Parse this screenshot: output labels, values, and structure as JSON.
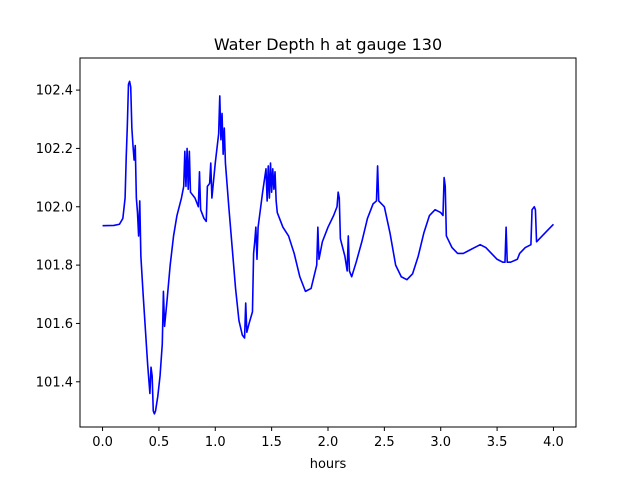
{
  "chart_data": {
    "type": "line",
    "title": "Water Depth h at gauge 130",
    "xlabel": "hours",
    "ylabel": "",
    "xlim": [
      -0.2,
      4.2
    ],
    "ylim": [
      101.245,
      102.51
    ],
    "x_ticks": [
      0.0,
      0.5,
      1.0,
      1.5,
      2.0,
      2.5,
      3.0,
      3.5,
      4.0
    ],
    "x_tick_labels": [
      "0.0",
      "0.5",
      "1.0",
      "1.5",
      "2.0",
      "2.5",
      "3.0",
      "3.5",
      "4.0"
    ],
    "y_ticks": [
      101.4,
      101.6,
      101.8,
      102.0,
      102.2,
      102.4
    ],
    "y_tick_labels": [
      "101.4",
      "101.6",
      "101.8",
      "102.0",
      "102.2",
      "102.4"
    ],
    "grid": false,
    "line_color": "#0000ff",
    "series": [
      {
        "points": [
          [
            0.0,
            101.935
          ],
          [
            0.1,
            101.936
          ],
          [
            0.15,
            101.94
          ],
          [
            0.18,
            101.96
          ],
          [
            0.2,
            102.03
          ],
          [
            0.21,
            102.17
          ],
          [
            0.22,
            102.28
          ],
          [
            0.23,
            102.42
          ],
          [
            0.24,
            102.43
          ],
          [
            0.25,
            102.41
          ],
          [
            0.26,
            102.27
          ],
          [
            0.27,
            102.21
          ],
          [
            0.28,
            102.16
          ],
          [
            0.29,
            102.21
          ],
          [
            0.3,
            102.03
          ],
          [
            0.31,
            101.98
          ],
          [
            0.32,
            101.9
          ],
          [
            0.33,
            102.02
          ],
          [
            0.34,
            101.83
          ],
          [
            0.36,
            101.7
          ],
          [
            0.38,
            101.58
          ],
          [
            0.4,
            101.46
          ],
          [
            0.42,
            101.36
          ],
          [
            0.43,
            101.45
          ],
          [
            0.44,
            101.42
          ],
          [
            0.45,
            101.3
          ],
          [
            0.46,
            101.29
          ],
          [
            0.47,
            101.3
          ],
          [
            0.49,
            101.35
          ],
          [
            0.51,
            101.42
          ],
          [
            0.53,
            101.53
          ],
          [
            0.54,
            101.71
          ],
          [
            0.55,
            101.59
          ],
          [
            0.57,
            101.67
          ],
          [
            0.6,
            101.8
          ],
          [
            0.63,
            101.9
          ],
          [
            0.66,
            101.97
          ],
          [
            0.7,
            102.03
          ],
          [
            0.72,
            102.07
          ],
          [
            0.73,
            102.19
          ],
          [
            0.74,
            102.07
          ],
          [
            0.75,
            102.2
          ],
          [
            0.76,
            102.06
          ],
          [
            0.77,
            102.19
          ],
          [
            0.78,
            102.05
          ],
          [
            0.82,
            102.03
          ],
          [
            0.85,
            102.0
          ],
          [
            0.86,
            102.12
          ],
          [
            0.87,
            101.99
          ],
          [
            0.9,
            101.96
          ],
          [
            0.92,
            101.95
          ],
          [
            0.93,
            102.07
          ],
          [
            0.95,
            102.08
          ],
          [
            0.96,
            102.15
          ],
          [
            0.97,
            102.03
          ],
          [
            1.0,
            102.15
          ],
          [
            1.03,
            102.25
          ],
          [
            1.04,
            102.38
          ],
          [
            1.05,
            102.23
          ],
          [
            1.06,
            102.32
          ],
          [
            1.07,
            102.18
          ],
          [
            1.08,
            102.27
          ],
          [
            1.09,
            102.15
          ],
          [
            1.12,
            102.0
          ],
          [
            1.15,
            101.86
          ],
          [
            1.18,
            101.72
          ],
          [
            1.21,
            101.61
          ],
          [
            1.24,
            101.56
          ],
          [
            1.26,
            101.55
          ],
          [
            1.27,
            101.67
          ],
          [
            1.28,
            101.57
          ],
          [
            1.3,
            101.6
          ],
          [
            1.33,
            101.64
          ],
          [
            1.34,
            101.84
          ],
          [
            1.35,
            101.88
          ],
          [
            1.36,
            101.93
          ],
          [
            1.37,
            101.82
          ],
          [
            1.38,
            101.93
          ],
          [
            1.42,
            102.05
          ],
          [
            1.45,
            102.13
          ],
          [
            1.46,
            102.02
          ],
          [
            1.47,
            102.14
          ],
          [
            1.48,
            102.03
          ],
          [
            1.49,
            102.15
          ],
          [
            1.5,
            102.05
          ],
          [
            1.51,
            102.13
          ],
          [
            1.52,
            102.06
          ],
          [
            1.53,
            102.12
          ],
          [
            1.54,
            102.02
          ],
          [
            1.55,
            101.98
          ],
          [
            1.6,
            101.93
          ],
          [
            1.65,
            101.9
          ],
          [
            1.7,
            101.84
          ],
          [
            1.75,
            101.76
          ],
          [
            1.8,
            101.71
          ],
          [
            1.85,
            101.72
          ],
          [
            1.9,
            101.8
          ],
          [
            1.91,
            101.93
          ],
          [
            1.92,
            101.82
          ],
          [
            1.95,
            101.88
          ],
          [
            2.0,
            101.93
          ],
          [
            2.05,
            101.97
          ],
          [
            2.08,
            102.0
          ],
          [
            2.09,
            102.05
          ],
          [
            2.1,
            102.03
          ],
          [
            2.11,
            101.89
          ],
          [
            2.15,
            101.83
          ],
          [
            2.17,
            101.78
          ],
          [
            2.18,
            101.9
          ],
          [
            2.19,
            101.78
          ],
          [
            2.21,
            101.76
          ],
          [
            2.25,
            101.81
          ],
          [
            2.3,
            101.88
          ],
          [
            2.35,
            101.96
          ],
          [
            2.4,
            102.01
          ],
          [
            2.43,
            102.02
          ],
          [
            2.44,
            102.14
          ],
          [
            2.45,
            102.02
          ],
          [
            2.5,
            102.0
          ],
          [
            2.55,
            101.91
          ],
          [
            2.6,
            101.8
          ],
          [
            2.65,
            101.76
          ],
          [
            2.7,
            101.75
          ],
          [
            2.75,
            101.77
          ],
          [
            2.8,
            101.83
          ],
          [
            2.85,
            101.91
          ],
          [
            2.9,
            101.97
          ],
          [
            2.95,
            101.99
          ],
          [
            3.0,
            101.98
          ],
          [
            3.02,
            101.97
          ],
          [
            3.03,
            102.1
          ],
          [
            3.04,
            102.07
          ],
          [
            3.05,
            101.9
          ],
          [
            3.1,
            101.86
          ],
          [
            3.15,
            101.84
          ],
          [
            3.2,
            101.84
          ],
          [
            3.25,
            101.85
          ],
          [
            3.3,
            101.86
          ],
          [
            3.35,
            101.87
          ],
          [
            3.4,
            101.86
          ],
          [
            3.45,
            101.84
          ],
          [
            3.5,
            101.82
          ],
          [
            3.55,
            101.81
          ],
          [
            3.57,
            101.81
          ],
          [
            3.58,
            101.93
          ],
          [
            3.59,
            101.81
          ],
          [
            3.62,
            101.81
          ],
          [
            3.68,
            101.82
          ],
          [
            3.7,
            101.84
          ],
          [
            3.75,
            101.86
          ],
          [
            3.8,
            101.87
          ],
          [
            3.81,
            101.99
          ],
          [
            3.83,
            102.0
          ],
          [
            3.84,
            101.99
          ],
          [
            3.85,
            101.88
          ],
          [
            3.9,
            101.9
          ],
          [
            3.95,
            101.92
          ],
          [
            4.0,
            101.94
          ]
        ]
      }
    ]
  }
}
